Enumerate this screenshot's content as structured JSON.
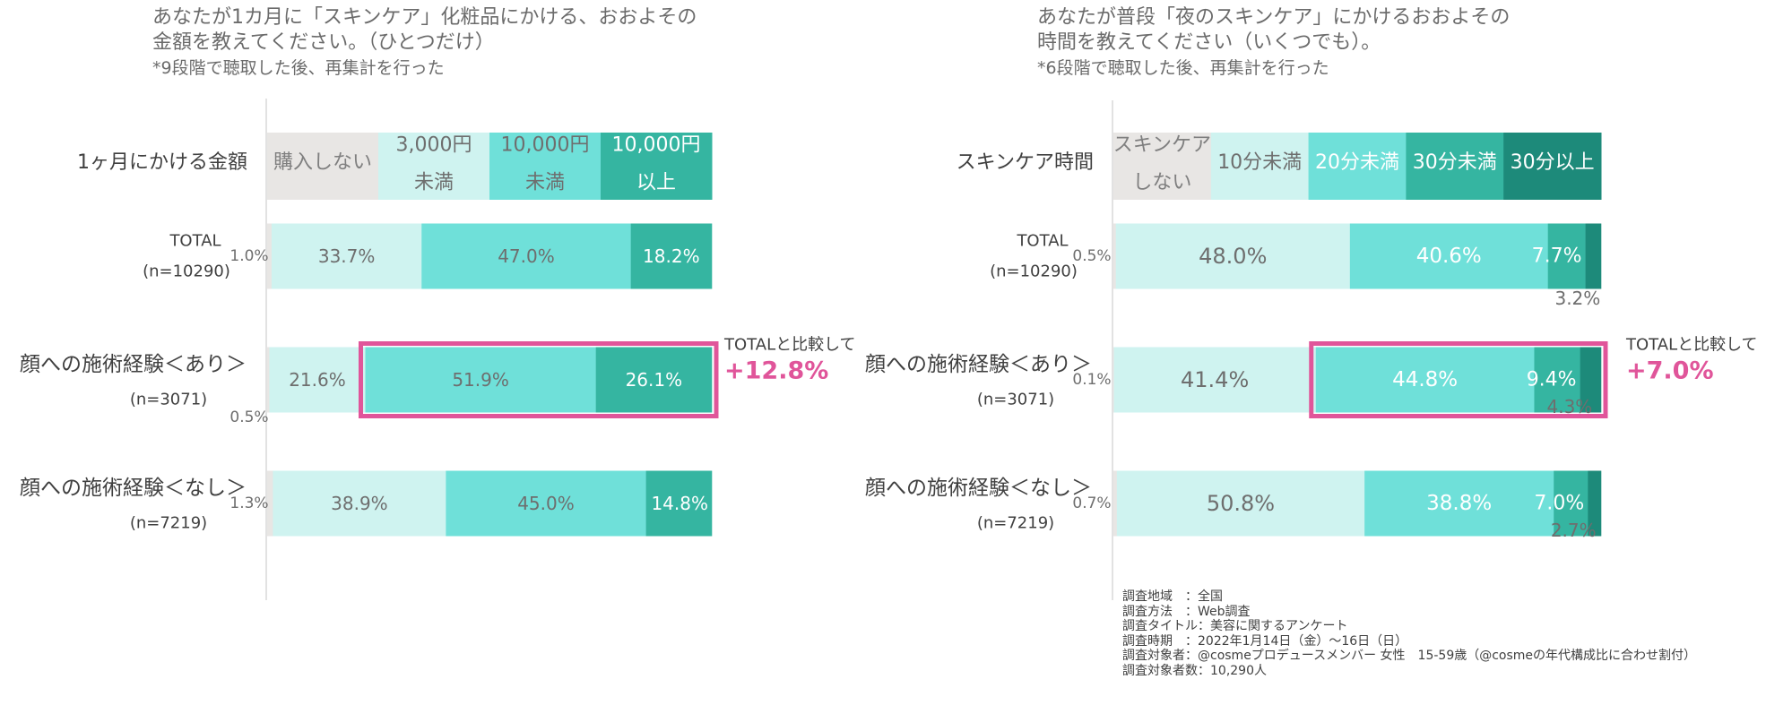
{
  "chart_data": [
    {
      "type": "bar",
      "orientation": "horizontal",
      "stacked": true,
      "normalized": true,
      "title": [
        "あなたが1カ月に「スキンケア」化粧品にかける、おおよその",
        "金額を教えてください。（ひとつだけ）",
        "*9段階で聴取した後、再集計を行った"
      ],
      "header_label": "1ヶ月にかける金額",
      "legend": [
        {
          "label": [
            "購入しない"
          ],
          "color": "#e8e6e4",
          "text_color": "#7f7f7f"
        },
        {
          "label": [
            "3,000円",
            "未満"
          ],
          "color": "#cff3f0",
          "text_color": "#6e6e6e"
        },
        {
          "label": [
            "10,000円",
            "未満"
          ],
          "color": "#6fe0d9",
          "text_color": "#6e6e6e"
        },
        {
          "label": [
            "10,000円",
            "以上"
          ],
          "color": "#35b5a1",
          "text_color": "#ffffff"
        }
      ],
      "categories": [
        {
          "name": "TOTAL",
          "n": "(n=10290)",
          "values": [
            1.0,
            33.7,
            47.0,
            18.2
          ],
          "labels": [
            "1.0%",
            "33.7%",
            "47.0%",
            "18.2%"
          ]
        },
        {
          "name": "顔への施術経験＜あり＞",
          "n": "(n=3071)",
          "values": [
            0.5,
            21.6,
            51.9,
            26.1
          ],
          "labels": [
            "0.5%",
            "21.6%",
            "51.9%",
            "26.1%"
          ]
        },
        {
          "name": "顔への施術経験＜なし＞",
          "n": "(n=7219)",
          "values": [
            1.3,
            38.9,
            45.0,
            14.8
          ],
          "labels": [
            "1.3%",
            "38.9%",
            "45.0%",
            "14.8%"
          ]
        }
      ],
      "highlight": {
        "category_index": 1,
        "from_series": 2,
        "to_series": 3
      },
      "annotation": {
        "label": "TOTALと比較して",
        "value": "+12.8%"
      }
    },
    {
      "type": "bar",
      "orientation": "horizontal",
      "stacked": true,
      "normalized": true,
      "title": [
        "あなたが普段「夜のスキンケア」にかけるおおよその",
        "時間を教えてください（いくつでも）。",
        "*6段階で聴取した後、再集計を行った"
      ],
      "header_label": "スキンケア時間",
      "legend": [
        {
          "label": [
            "スキンケア",
            "しない"
          ],
          "color": "#e8e6e4",
          "text_color": "#7f7f7f"
        },
        {
          "label": [
            "10分未満"
          ],
          "color": "#cff3f0",
          "text_color": "#6e6e6e"
        },
        {
          "label": [
            "20分未満"
          ],
          "color": "#6fe0d9",
          "text_color": "#ffffff"
        },
        {
          "label": [
            "30分未満"
          ],
          "color": "#35b5a1",
          "text_color": "#ffffff"
        },
        {
          "label": [
            "30分以上"
          ],
          "color": "#1d8a7a",
          "text_color": "#ffffff"
        }
      ],
      "categories": [
        {
          "name": "TOTAL",
          "n": "(n=10290)",
          "values": [
            0.5,
            48.0,
            40.6,
            7.7,
            3.2
          ],
          "labels": [
            "0.5%",
            "48.0%",
            "40.6%",
            "7.7%",
            "3.2%"
          ]
        },
        {
          "name": "顔への施術経験＜あり＞",
          "n": "(n=3071)",
          "values": [
            0.1,
            41.4,
            44.8,
            9.4,
            4.3
          ],
          "labels": [
            "0.1%",
            "41.4%",
            "44.8%",
            "9.4%",
            "4.3%"
          ]
        },
        {
          "name": "顔への施術経験＜なし＞",
          "n": "(n=7219)",
          "values": [
            0.7,
            50.8,
            38.8,
            7.0,
            2.7
          ],
          "labels": [
            "0.7%",
            "50.8%",
            "38.8%",
            "7.0%",
            "2.7%"
          ]
        }
      ],
      "highlight": {
        "category_index": 1,
        "from_series": 2,
        "to_series": 4
      },
      "annotation": {
        "label": "TOTALと比較して",
        "value": "+7.0%"
      }
    }
  ],
  "colors": {
    "highlight": "#e0559a",
    "axis": "#d9d9d9",
    "category_text": "#404040",
    "small_label": "#6e6e6e"
  },
  "footer": [
    "調査地域　：全国",
    "調査方法　：Web調査",
    "調査タイトル：美容に関するアンケート",
    "調査時期　：2022年1月14日（金）～16日（日）",
    "調査対象者：@cosmeプロデュースメンバー 女性　15-59歳（@cosmeの年代構成比に合わせ割付）",
    "調査対象者数：10,290人"
  ]
}
